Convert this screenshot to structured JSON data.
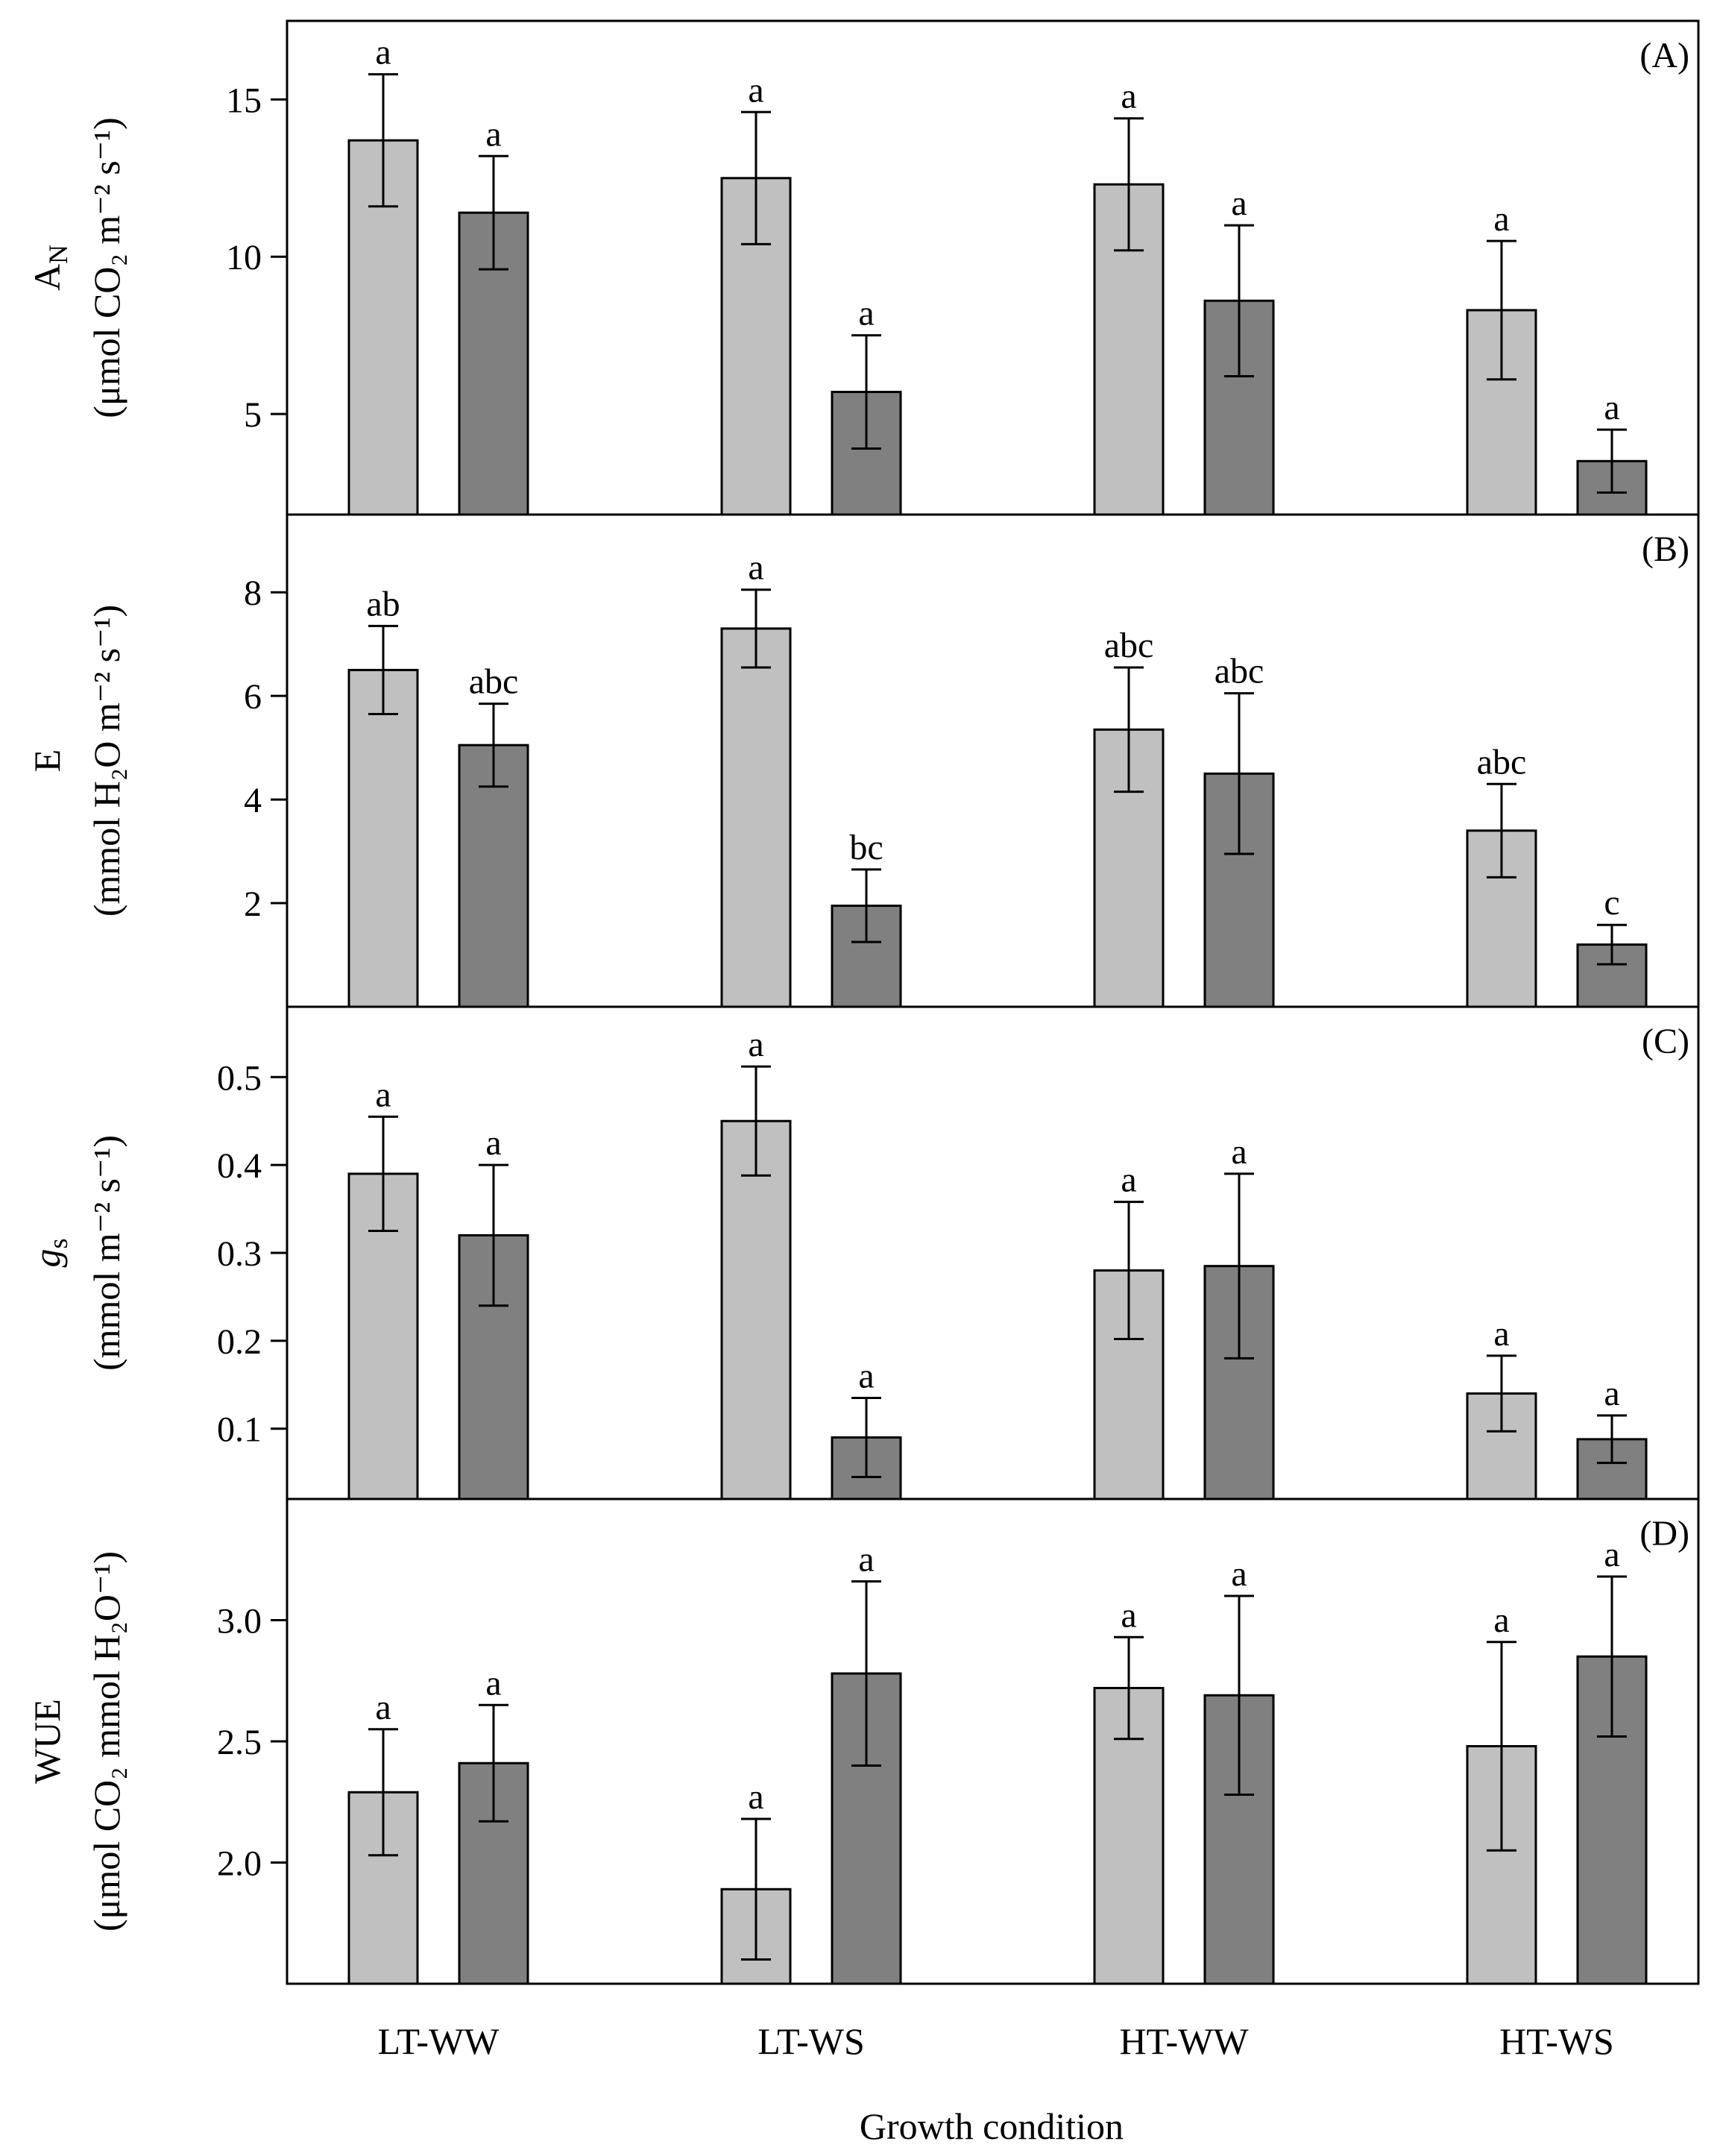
{
  "figure": {
    "xlabel": "Growth condition",
    "categories": [
      "LT-WW",
      "LT-WS",
      "HT-WW",
      "HT-WS"
    ],
    "colors": {
      "light_bar": "#c0c0c0",
      "dark_bar": "#808080",
      "outline": "#000000"
    }
  },
  "chart_data": [
    {
      "type": "bar",
      "panel_label": "(A)",
      "ylabel": {
        "top": "A",
        "top_sub": "N",
        "bottom": "(μmol CO₂ m⁻² s⁻¹)"
      },
      "ylim": [
        1.8,
        17.5
      ],
      "yticks": [
        5,
        10,
        15
      ],
      "ytick_labels": [
        "5",
        "10",
        "15"
      ],
      "categories": [
        "LT-WW",
        "LT-WS",
        "HT-WW",
        "HT-WS"
      ],
      "series": [
        {
          "values": [
            13.7,
            12.5,
            12.3,
            8.3
          ],
          "errors": [
            2.1,
            2.1,
            2.1,
            2.2
          ],
          "letters": [
            "a",
            "a",
            "a",
            "a"
          ]
        },
        {
          "values": [
            11.4,
            5.7,
            8.6,
            3.5
          ],
          "errors": [
            1.8,
            1.8,
            2.4,
            1.0
          ],
          "letters": [
            "a",
            "a",
            "a",
            "a"
          ]
        }
      ]
    },
    {
      "type": "bar",
      "panel_label": "(B)",
      "ylabel": {
        "top": "E",
        "top_sub": "",
        "bottom": "(mmol H₂O m⁻² s⁻¹)"
      },
      "ylim": [
        0,
        9.5
      ],
      "yticks": [
        2,
        4,
        6,
        8
      ],
      "ytick_labels": [
        "2",
        "4",
        "6",
        "8"
      ],
      "categories": [
        "LT-WW",
        "LT-WS",
        "HT-WW",
        "HT-WS"
      ],
      "series": [
        {
          "values": [
            6.5,
            7.3,
            5.35,
            3.4
          ],
          "errors": [
            0.85,
            0.75,
            1.2,
            0.9
          ],
          "letters": [
            "ab",
            "a",
            "abc",
            "abc"
          ]
        },
        {
          "values": [
            5.05,
            1.95,
            4.5,
            1.2
          ],
          "errors": [
            0.8,
            0.7,
            1.55,
            0.38
          ],
          "letters": [
            "abc",
            "bc",
            "abc",
            "c"
          ]
        }
      ]
    },
    {
      "type": "bar",
      "panel_label": "(C)",
      "ylabel": {
        "top": "g",
        "top_sub": "s",
        "bottom": "(mmol m⁻² s⁻¹)"
      },
      "ylim": [
        0.02,
        0.58
      ],
      "yticks": [
        0.1,
        0.2,
        0.3,
        0.4,
        0.5
      ],
      "ytick_labels": [
        "0.1",
        "0.2",
        "0.3",
        "0.4",
        "0.5"
      ],
      "categories": [
        "LT-WW",
        "LT-WS",
        "HT-WW",
        "HT-WS"
      ],
      "series": [
        {
          "values": [
            0.39,
            0.45,
            0.28,
            0.14
          ],
          "errors": [
            0.065,
            0.062,
            0.078,
            0.043
          ],
          "letters": [
            "a",
            "a",
            "a",
            "a"
          ]
        },
        {
          "values": [
            0.32,
            0.09,
            0.285,
            0.088
          ],
          "errors": [
            0.08,
            0.045,
            0.105,
            0.027
          ],
          "letters": [
            "a",
            "a",
            "a",
            "a"
          ]
        }
      ]
    },
    {
      "type": "bar",
      "panel_label": "(D)",
      "ylabel": {
        "top": "WUE",
        "top_sub": "",
        "bottom": "(μmol CO₂ mmol H₂O⁻¹)"
      },
      "ylim": [
        1.5,
        3.5
      ],
      "yticks": [
        2.0,
        2.5,
        3.0
      ],
      "ytick_labels": [
        "2.0",
        "2.5",
        "3.0"
      ],
      "categories": [
        "LT-WW",
        "LT-WS",
        "HT-WW",
        "HT-WS"
      ],
      "series": [
        {
          "values": [
            2.29,
            1.89,
            2.72,
            2.48
          ],
          "errors": [
            0.26,
            0.29,
            0.21,
            0.43
          ],
          "letters": [
            "a",
            "a",
            "a",
            "a"
          ]
        },
        {
          "values": [
            2.41,
            2.78,
            2.69,
            2.85
          ],
          "errors": [
            0.24,
            0.38,
            0.41,
            0.33
          ],
          "letters": [
            "a",
            "a",
            "a",
            "a"
          ]
        }
      ]
    }
  ]
}
